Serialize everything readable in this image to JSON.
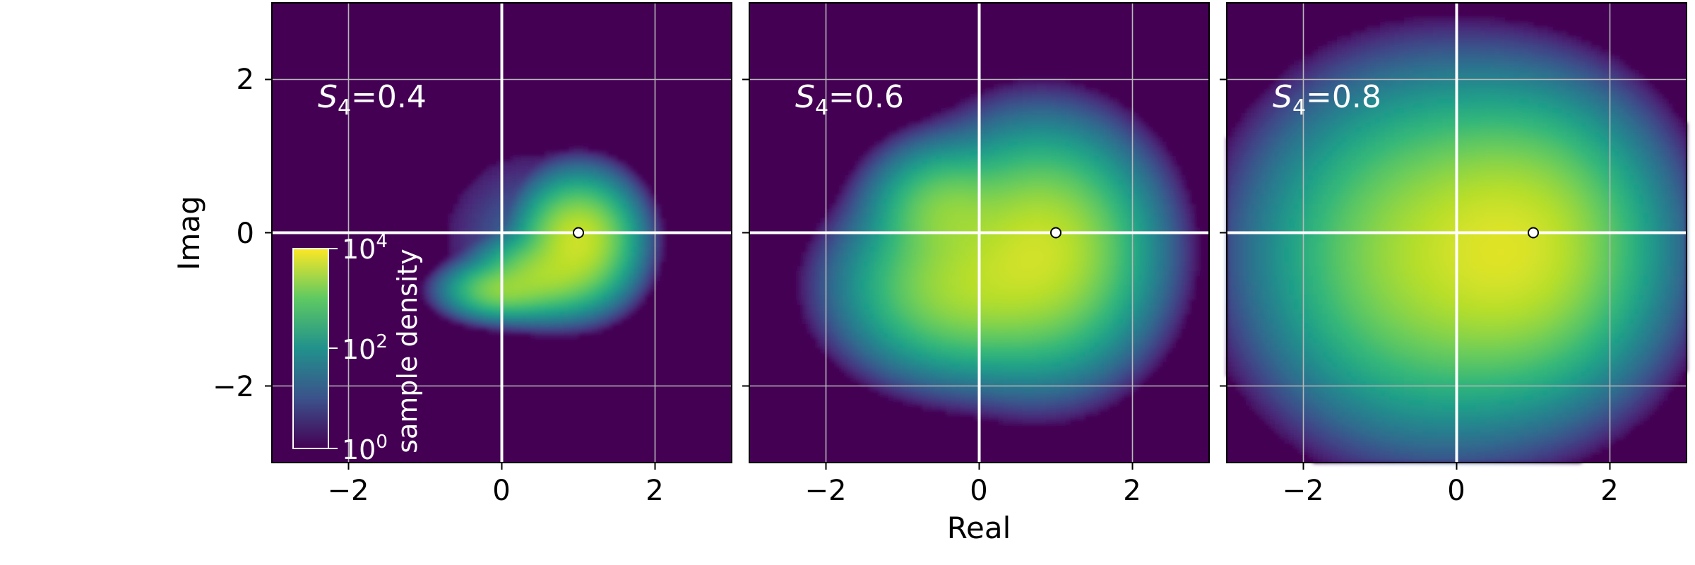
{
  "chart_data": {
    "type": "heatmap",
    "xlabel": "Real",
    "ylabel": "Imag",
    "xlim": [
      -3,
      3
    ],
    "ylim": [
      -3,
      3
    ],
    "x_ticks": [
      -2,
      0,
      2
    ],
    "y_ticks": [
      -2,
      0,
      2
    ],
    "x_tick_labels": [
      "−2",
      "0",
      "2"
    ],
    "y_tick_labels": [
      "−2",
      "0",
      "2"
    ],
    "grid": true,
    "colormap": "viridis",
    "colors": {
      "background": "#440154",
      "peak": "#fde725",
      "mid": "#21918c",
      "grid": "#b8b8b8",
      "axis_line": "#ffffff"
    },
    "reference_point": {
      "x": 1,
      "y": 0
    },
    "panels": [
      {
        "label_base": "S",
        "label_sub": "4",
        "label_value": "=0.4",
        "density": {
          "blobs": [
            {
              "x": 1.0,
              "y": -0.1,
              "sx": 0.3,
              "sy": 0.32,
              "w": 1.0
            },
            {
              "x": 0.55,
              "y": -0.55,
              "sx": 0.35,
              "sy": 0.22,
              "w": 0.55
            },
            {
              "x": 0.0,
              "y": -0.75,
              "sx": 0.3,
              "sy": 0.15,
              "w": 0.4
            }
          ],
          "outer_radius": 1.3
        }
      },
      {
        "label_base": "S",
        "label_sub": "4",
        "label_value": "=0.6",
        "density": {
          "blobs": [
            {
              "x": 0.8,
              "y": -0.25,
              "sx": 0.55,
              "sy": 0.6,
              "w": 1.0
            },
            {
              "x": -0.2,
              "y": -0.7,
              "sx": 0.6,
              "sy": 0.45,
              "w": 0.6
            },
            {
              "x": -0.4,
              "y": 0.25,
              "sx": 0.4,
              "sy": 0.35,
              "w": 0.4
            }
          ],
          "outer_radius": 2.2
        }
      },
      {
        "label_base": "S",
        "label_sub": "4",
        "label_value": "=0.8",
        "density": {
          "blobs": [
            {
              "x": 0.8,
              "y": -0.2,
              "sx": 0.7,
              "sy": 0.75,
              "w": 1.0
            },
            {
              "x": -0.3,
              "y": -0.3,
              "sx": 0.85,
              "sy": 0.85,
              "w": 0.65
            }
          ],
          "outer_radius": 2.6
        }
      }
    ],
    "colorbar": {
      "label": "sample density",
      "ticks": [
        {
          "base": "10",
          "exp": "4",
          "pos": 1.0
        },
        {
          "base": "10",
          "exp": "2",
          "pos": 0.5
        },
        {
          "base": "10",
          "exp": "0",
          "pos": 0.0
        }
      ]
    }
  }
}
